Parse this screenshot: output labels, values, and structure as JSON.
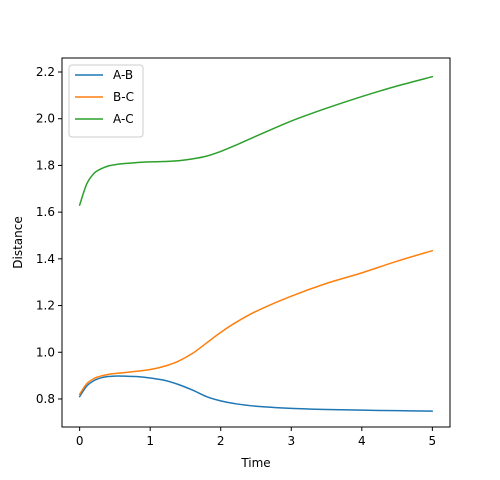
{
  "chart_data": {
    "type": "line",
    "title": "",
    "xlabel": "Time",
    "ylabel": "Distance",
    "xlim": [
      -0.25,
      5.25
    ],
    "ylim": [
      0.68,
      2.26
    ],
    "xticks": [
      0,
      1,
      2,
      3,
      4,
      5
    ],
    "xtick_labels": [
      "0",
      "1",
      "2",
      "3",
      "4",
      "5"
    ],
    "yticks": [
      0.8,
      1.0,
      1.2,
      1.4,
      1.6,
      1.8,
      2.0,
      2.2
    ],
    "ytick_labels": [
      "0.8",
      "1.0",
      "1.2",
      "1.4",
      "1.6",
      "1.8",
      "2.0",
      "2.2"
    ],
    "grid": false,
    "legend_position": "top-left",
    "x": [
      0,
      0.1,
      0.2,
      0.3,
      0.4,
      0.5,
      0.6,
      0.8,
      1.0,
      1.2,
      1.4,
      1.6,
      1.8,
      2.0,
      2.2,
      2.5,
      3.0,
      3.5,
      4.0,
      4.5,
      5.0
    ],
    "series": [
      {
        "name": "A-B",
        "color": "#1f77b4",
        "values": [
          0.81,
          0.855,
          0.878,
          0.89,
          0.896,
          0.898,
          0.898,
          0.896,
          0.89,
          0.88,
          0.862,
          0.838,
          0.81,
          0.792,
          0.78,
          0.769,
          0.76,
          0.755,
          0.752,
          0.75,
          0.748
        ]
      },
      {
        "name": "B-C",
        "color": "#ff7f0e",
        "values": [
          0.82,
          0.865,
          0.887,
          0.898,
          0.905,
          0.909,
          0.912,
          0.918,
          0.926,
          0.94,
          0.962,
          0.995,
          1.04,
          1.085,
          1.125,
          1.175,
          1.24,
          1.295,
          1.34,
          1.39,
          1.435
        ]
      },
      {
        "name": "A-C",
        "color": "#2ca02c",
        "values": [
          1.63,
          1.72,
          1.765,
          1.785,
          1.797,
          1.803,
          1.807,
          1.812,
          1.815,
          1.817,
          1.82,
          1.828,
          1.84,
          1.86,
          1.885,
          1.925,
          1.99,
          2.045,
          2.095,
          2.14,
          2.18
        ]
      }
    ]
  }
}
